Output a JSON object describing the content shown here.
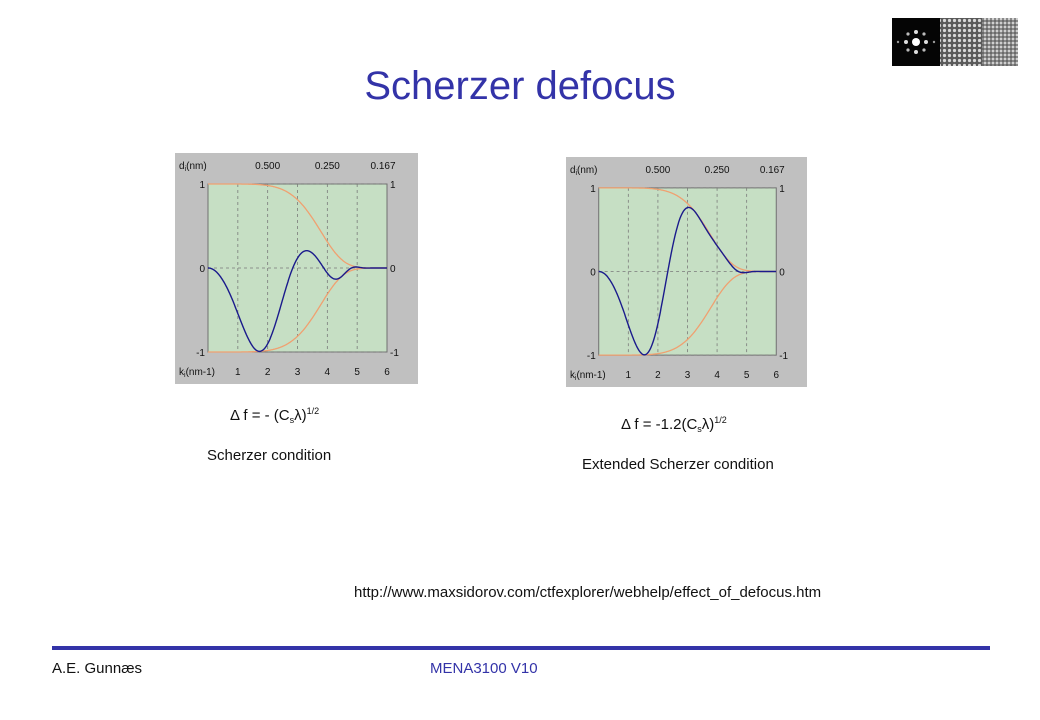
{
  "slide": {
    "title": "Scherzer defocus",
    "url": "http://www.maxsidorov.com/ctfexplorer/webhelp/effect_of_defocus.htm",
    "footer_left": "A.E. Gunnæs",
    "footer_center": "MENA3100 V10"
  },
  "left": {
    "formula_main": "Δ f = - (C",
    "formula_sub": "s",
    "formula_mid": "λ)",
    "formula_sup": "1/2",
    "caption": "Scherzer condition"
  },
  "right": {
    "formula_main": "Δ f = -1.2(C",
    "formula_sub": "s",
    "formula_mid": "λ)",
    "formula_sup": "1/2",
    "caption": "Extended Scherzer condition"
  },
  "plot_labels": {
    "d_label_main": "d",
    "d_label_sub": "i",
    "d_label_end": "(nm)",
    "k_label_main": "k",
    "k_label_sub": "i",
    "k_label_end": "(nm-1)",
    "top_ticks": [
      "0.500",
      "0.250",
      "0.167"
    ],
    "bottom_ticks": [
      "1",
      "2",
      "3",
      "4",
      "5",
      "6"
    ],
    "y_ticks": [
      "1",
      "0",
      "-1"
    ]
  },
  "chart_data": [
    {
      "type": "line",
      "x_range": [
        0,
        6.0
      ],
      "ylim": [
        -1,
        1
      ],
      "defocus_factor": 1.0,
      "series": [
        {
          "role": "envelope",
          "color": "#f0a070"
        },
        {
          "role": "ctf",
          "color": "#1a1a8c"
        }
      ],
      "grid": true
    },
    {
      "type": "line",
      "x_range": [
        0,
        6.0
      ],
      "ylim": [
        -1,
        1
      ],
      "defocus_factor": 1.2,
      "series": [
        {
          "role": "envelope",
          "color": "#f0a070"
        },
        {
          "role": "ctf",
          "color": "#1a1a8c"
        }
      ],
      "grid": true
    }
  ],
  "colors": {
    "title": "#3333a8",
    "plot_frame": "#c0c0c0",
    "plot_bg": "#c6dfc4"
  },
  "icons": {
    "logo": "diffraction-pattern-and-lattice-image"
  }
}
